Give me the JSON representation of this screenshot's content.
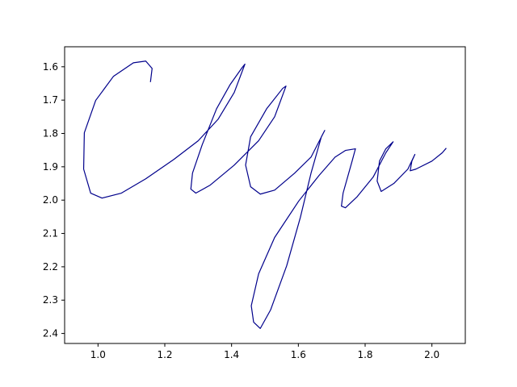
{
  "chart_data": {
    "type": "line",
    "x": [
      1.157,
      1.162,
      1.143,
      1.106,
      1.046,
      0.993,
      0.959,
      0.957,
      0.978,
      1.012,
      1.07,
      1.143,
      1.227,
      1.3,
      1.36,
      1.408,
      1.44,
      1.432,
      1.396,
      1.355,
      1.312,
      1.283,
      1.278,
      1.293,
      1.336,
      1.408,
      1.481,
      1.529,
      1.563,
      1.553,
      1.505,
      1.457,
      1.442,
      1.457,
      1.486,
      1.529,
      1.589,
      1.638,
      1.679,
      1.669,
      1.638,
      1.606,
      1.565,
      1.517,
      1.486,
      1.466,
      1.459,
      1.481,
      1.529,
      1.601,
      1.662,
      1.71,
      1.741,
      1.771,
      1.761,
      1.734,
      1.729,
      1.741,
      1.775,
      1.824,
      1.862,
      1.884,
      1.862,
      1.843,
      1.836,
      1.848,
      1.886,
      1.928,
      1.949,
      1.94,
      1.935,
      1.952,
      2.0,
      2.031,
      2.043
    ],
    "series": [
      {
        "color": "#00008b",
        "values": [
          1.646,
          1.605,
          1.583,
          1.588,
          1.629,
          1.701,
          1.798,
          1.907,
          1.979,
          1.994,
          1.979,
          1.936,
          1.878,
          1.822,
          1.757,
          1.677,
          1.592,
          1.602,
          1.653,
          1.726,
          1.834,
          1.919,
          1.967,
          1.979,
          1.955,
          1.895,
          1.822,
          1.75,
          1.658,
          1.665,
          1.726,
          1.81,
          1.895,
          1.96,
          1.982,
          1.97,
          1.919,
          1.871,
          1.791,
          1.81,
          1.919,
          2.052,
          2.197,
          2.329,
          2.385,
          2.366,
          2.317,
          2.221,
          2.112,
          2.003,
          1.926,
          1.871,
          1.851,
          1.846,
          1.883,
          1.979,
          2.018,
          2.023,
          1.991,
          1.931,
          1.858,
          1.825,
          1.846,
          1.883,
          1.943,
          1.974,
          1.95,
          1.907,
          1.863,
          1.883,
          1.912,
          1.907,
          1.883,
          1.858,
          1.844
        ]
      }
    ],
    "xlim": [
      0.9,
      2.1
    ],
    "xticks": [
      {
        "value": 1.0,
        "label": "1.0"
      },
      1.2,
      1.4,
      1.6,
      1.8,
      {
        "value": 2.0,
        "label": "2.0"
      }
    ],
    "ylim": [
      2.43,
      1.54
    ],
    "yticks": [
      1.6,
      1.7,
      1.8,
      1.9,
      {
        "value": 2.0,
        "label": "2.0"
      },
      2.1,
      2.2,
      2.3,
      2.4
    ]
  }
}
